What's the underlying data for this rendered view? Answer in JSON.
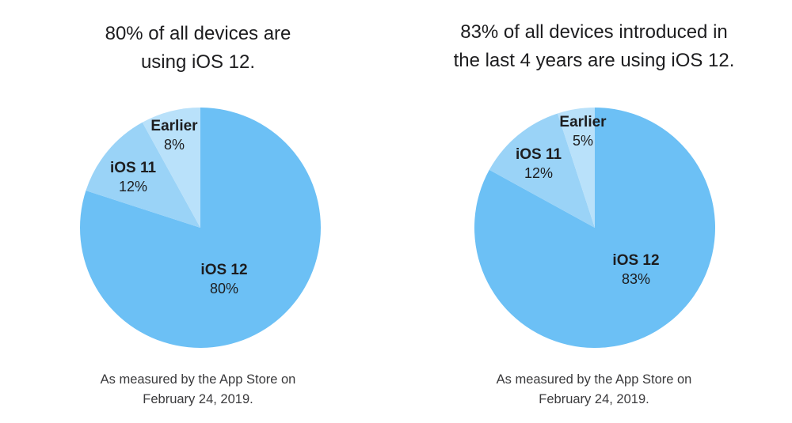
{
  "chart_data": [
    {
      "type": "pie",
      "title_lines": [
        "80% of all devices are",
        "using iOS 12."
      ],
      "slices": [
        {
          "name": "iOS 12",
          "label": "80%",
          "value": 80,
          "color": "#6cc0f5"
        },
        {
          "name": "iOS 11",
          "label": "12%",
          "value": 12,
          "color": "#9ad3f7"
        },
        {
          "name": "Earlier",
          "label": "8%",
          "value": 8,
          "color": "#b9e1fa"
        }
      ],
      "caption_lines": [
        "As measured by the App Store on",
        "February 24, 2019."
      ]
    },
    {
      "type": "pie",
      "title_lines": [
        "83% of all devices introduced in",
        "the last 4 years are using iOS 12."
      ],
      "slices": [
        {
          "name": "iOS 12",
          "label": "83%",
          "value": 83,
          "color": "#6cc0f5"
        },
        {
          "name": "iOS 11",
          "label": "12%",
          "value": 12,
          "color": "#9ad3f7"
        },
        {
          "name": "Earlier",
          "label": "5%",
          "value": 5,
          "color": "#b9e1fa"
        }
      ],
      "caption_lines": [
        "As measured by the App Store on",
        "February 24, 2019."
      ]
    }
  ]
}
